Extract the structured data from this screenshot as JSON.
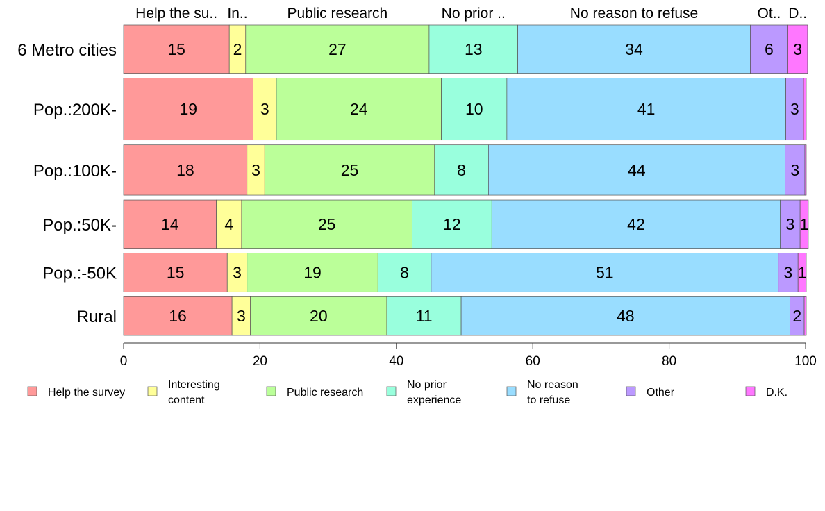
{
  "chart_data": {
    "type": "bar",
    "orientation": "horizontal",
    "stacked": true,
    "categories": [
      "6 Metro cities",
      "Pop.:200K-",
      "Pop.:100K-",
      "Pop.:50K-",
      "Pop.:-50K",
      "Rural"
    ],
    "series": [
      {
        "name": "Help the survey",
        "values": [
          15.5,
          19.0,
          18.1,
          13.6,
          15.2,
          15.9
        ]
      },
      {
        "name": "Interesting content",
        "values": [
          2.4,
          3.4,
          2.6,
          3.7,
          2.9,
          2.7
        ]
      },
      {
        "name": "Public research",
        "values": [
          26.9,
          24.2,
          24.9,
          25.0,
          19.2,
          20.0
        ]
      },
      {
        "name": "No prior experience",
        "values": [
          13.0,
          9.6,
          7.9,
          11.7,
          7.8,
          10.9
        ]
      },
      {
        "name": "No reason to refuse",
        "values": [
          34.1,
          40.9,
          43.5,
          42.3,
          50.9,
          48.2
        ]
      },
      {
        "name": "Other",
        "values": [
          5.5,
          2.6,
          2.9,
          2.9,
          2.9,
          2.1
        ]
      },
      {
        "name": "D.K.",
        "values": [
          2.9,
          0.4,
          0.2,
          1.2,
          1.2,
          0.3
        ]
      }
    ],
    "segment_labels": [
      [
        "15",
        "2",
        "27",
        "13",
        "34",
        "6",
        "3"
      ],
      [
        "19",
        "3",
        "24",
        "10",
        "41",
        "3",
        ""
      ],
      [
        "18",
        "3",
        "25",
        "8",
        "44",
        "3",
        ""
      ],
      [
        "14",
        "4",
        "25",
        "12",
        "42",
        "3",
        "1"
      ],
      [
        "15",
        "3",
        "19",
        "8",
        "51",
        "3",
        "1"
      ],
      [
        "16",
        "3",
        "20",
        "11",
        "48",
        "2",
        ""
      ]
    ],
    "row_weights": [
      1.0,
      1.28,
      1.04,
      1.0,
      0.8,
      0.8
    ],
    "top_labels": [
      "Help the su..",
      "In..",
      "Public research",
      "No prior ..",
      "No reason to refuse",
      "Ot..",
      "D.."
    ],
    "legend": [
      {
        "lines": [
          "Help the survey"
        ]
      },
      {
        "lines": [
          "Interesting",
          "content"
        ]
      },
      {
        "lines": [
          "Public research"
        ]
      },
      {
        "lines": [
          "No prior",
          "experience"
        ]
      },
      {
        "lines": [
          "No reason",
          "to refuse"
        ]
      },
      {
        "lines": [
          "Other"
        ]
      },
      {
        "lines": [
          "D.K."
        ]
      }
    ],
    "xlim": [
      0,
      100
    ],
    "xticks": [
      0,
      20,
      40,
      60,
      80,
      100
    ],
    "colors": [
      "#FF9999",
      "#FFFF99",
      "#BBFF99",
      "#99FFDD",
      "#99DDFF",
      "#BB99FF",
      "#FF77FF"
    ],
    "grid": false,
    "legend_position": "bottom",
    "title": "",
    "xlabel": "",
    "ylabel": ""
  }
}
